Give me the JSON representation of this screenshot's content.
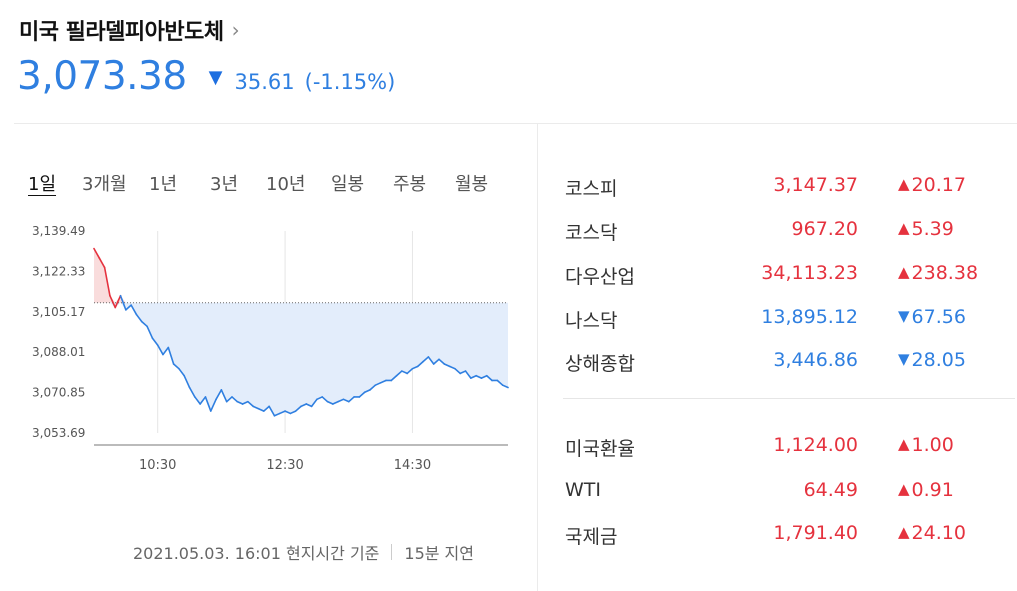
{
  "header": {
    "title": "미국 필라델피아반도체",
    "price": "3,073.38",
    "change_arrow": "▼",
    "change": "35.61",
    "change_pct": "(-1.15%)"
  },
  "tabs": [
    "1일",
    "3개월",
    "1년",
    "3년",
    "10년",
    "일봉",
    "주봉",
    "월봉"
  ],
  "footer": {
    "timestamp": "2021.05.03. 16:01 현지시간 기준",
    "delay": "15분 지연"
  },
  "colors": {
    "up": "#e5323e",
    "down": "#2f7fe0",
    "fill_down": "#e3edfb",
    "fill_up": "#f9dcdc"
  },
  "side": {
    "group1": [
      {
        "name": "코스피",
        "value": "3,147.37",
        "dir": "up",
        "arrow": "▲",
        "change": "20.17"
      },
      {
        "name": "코스닥",
        "value": "967.20",
        "dir": "up",
        "arrow": "▲",
        "change": "5.39"
      },
      {
        "name": "다우산업",
        "value": "34,113.23",
        "dir": "up",
        "arrow": "▲",
        "change": "238.38"
      },
      {
        "name": "나스닥",
        "value": "13,895.12",
        "dir": "down",
        "arrow": "▼",
        "change": "67.56"
      },
      {
        "name": "상해종합",
        "value": "3,446.86",
        "dir": "down",
        "arrow": "▼",
        "change": "28.05"
      }
    ],
    "group2": [
      {
        "name": "미국환율",
        "value": "1,124.00",
        "dir": "up",
        "arrow": "▲",
        "change": "1.00"
      },
      {
        "name": "WTI",
        "value": "64.49",
        "dir": "up",
        "arrow": "▲",
        "change": "0.91"
      },
      {
        "name": "국제금",
        "value": "1,791.40",
        "dir": "up",
        "arrow": "▲",
        "change": "24.10"
      }
    ]
  },
  "chart_data": {
    "type": "area",
    "y_ticks": [
      "3,139.49",
      "3,122.33",
      "3,105.17",
      "3,088.01",
      "3,070.85",
      "3,053.69"
    ],
    "x_ticks": [
      "10:30",
      "12:30",
      "14:30"
    ],
    "ylim": [
      3053.69,
      3139.49
    ],
    "baseline": 3109.0,
    "x": [
      "09:30",
      "09:35",
      "09:40",
      "09:45",
      "09:50",
      "09:55",
      "10:00",
      "10:05",
      "10:10",
      "10:15",
      "10:20",
      "10:25",
      "10:30",
      "10:35",
      "10:40",
      "10:45",
      "10:50",
      "10:55",
      "11:00",
      "11:05",
      "11:10",
      "11:15",
      "11:20",
      "11:25",
      "11:30",
      "11:35",
      "11:40",
      "11:45",
      "11:50",
      "11:55",
      "12:00",
      "12:05",
      "12:10",
      "12:15",
      "12:20",
      "12:25",
      "12:30",
      "12:35",
      "12:40",
      "12:45",
      "12:50",
      "12:55",
      "13:00",
      "13:05",
      "13:10",
      "13:15",
      "13:20",
      "13:25",
      "13:30",
      "13:35",
      "13:40",
      "13:45",
      "13:50",
      "13:55",
      "14:00",
      "14:05",
      "14:10",
      "14:15",
      "14:20",
      "14:25",
      "14:30",
      "14:35",
      "14:40",
      "14:45",
      "14:50",
      "14:55",
      "15:00",
      "15:05",
      "15:10",
      "15:15",
      "15:20",
      "15:25",
      "15:30",
      "15:35",
      "15:40",
      "15:45",
      "15:50",
      "15:55",
      "16:00"
    ],
    "values": [
      3132,
      3128,
      3124,
      3112,
      3107,
      3112,
      3106,
      3108,
      3104,
      3101,
      3099,
      3094,
      3091,
      3087,
      3090,
      3083,
      3081,
      3078,
      3073,
      3069,
      3066,
      3069,
      3063,
      3068,
      3072,
      3067,
      3069,
      3067,
      3066,
      3067,
      3065,
      3064,
      3063,
      3065,
      3061,
      3062,
      3063,
      3062,
      3063,
      3065,
      3066,
      3065,
      3068,
      3069,
      3067,
      3066,
      3067,
      3068,
      3067,
      3069,
      3069,
      3071,
      3072,
      3074,
      3075,
      3076,
      3076,
      3078,
      3080,
      3079,
      3081,
      3082,
      3084,
      3086,
      3083,
      3085,
      3083,
      3082,
      3081,
      3079,
      3080,
      3077,
      3078,
      3077,
      3078,
      3076,
      3076,
      3074,
      3073
    ]
  }
}
